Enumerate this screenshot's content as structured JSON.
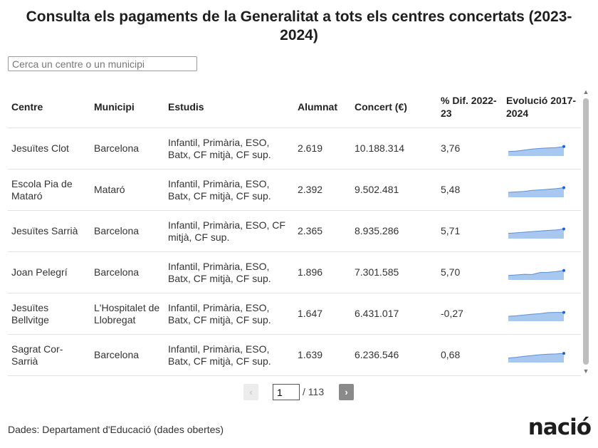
{
  "title": "Consulta els pagaments de la Generalitat a tots els centres concertats (2023-2024)",
  "search": {
    "placeholder": "Cerca un centre o un municipi"
  },
  "table": {
    "headers": {
      "centre": "Centre",
      "municipi": "Municipi",
      "estudis": "Estudis",
      "alumnat": "Alumnat",
      "concert": "Concert (€)",
      "dif": "% Dif. 2022-23",
      "evolucio": "Evolució 2017-2024"
    },
    "rows": [
      {
        "centre": "Jesuïtes Clot",
        "municipi": "Barcelona",
        "estudis": "Infantil, Primària, ESO, Batx, CF mitjà, CF sup.",
        "alumnat": "2.619",
        "concert": "10.188.314",
        "dif": "3,76",
        "trend": [
          0.3,
          0.35,
          0.45,
          0.55,
          0.62,
          0.66,
          0.7,
          0.8
        ]
      },
      {
        "centre": "Escola Pia de Mataró",
        "municipi": "Mataró",
        "estudis": "Infantil, Primària, ESO, Batx, CF mitjà, CF sup.",
        "alumnat": "2.392",
        "concert": "9.502.481",
        "dif": "5,48",
        "trend": [
          0.35,
          0.4,
          0.45,
          0.55,
          0.6,
          0.66,
          0.72,
          0.82
        ]
      },
      {
        "centre": "Jesuïtes Sarrià",
        "municipi": "Barcelona",
        "estudis": "Infantil, Primària, ESO, CF mitjà, CF sup.",
        "alumnat": "2.365",
        "concert": "8.935.286",
        "dif": "5,71",
        "trend": [
          0.38,
          0.44,
          0.5,
          0.56,
          0.62,
          0.68,
          0.72,
          0.82
        ]
      },
      {
        "centre": "Joan Pelegrí",
        "municipi": "Barcelona",
        "estudis": "Infantil, Primària, ESO, Batx, CF mitjà, CF sup.",
        "alumnat": "1.896",
        "concert": "7.301.585",
        "dif": "5,70",
        "trend": [
          0.3,
          0.36,
          0.42,
          0.4,
          0.6,
          0.62,
          0.7,
          0.8
        ]
      },
      {
        "centre": "Jesuïtes Bellvitge",
        "municipi": "L'Hospitalet de Llobregat",
        "estudis": "Infantil, Primària, ESO, Batx, CF mitjà, CF sup.",
        "alumnat": "1.647",
        "concert": "6.431.017",
        "dif": "-0,27",
        "trend": [
          0.35,
          0.4,
          0.48,
          0.56,
          0.62,
          0.72,
          0.74,
          0.74
        ]
      },
      {
        "centre": "Sagrat Cor-Sarrià",
        "municipi": "Barcelona",
        "estudis": "Infantil, Primària, ESO, Batx, CF mitjà, CF sup.",
        "alumnat": "1.639",
        "concert": "6.236.546",
        "dif": "0,68",
        "trend": [
          0.3,
          0.38,
          0.48,
          0.56,
          0.64,
          0.7,
          0.72,
          0.78
        ]
      }
    ]
  },
  "pagination": {
    "current_page": "1",
    "total_label": "/ 113",
    "prev_label": "‹",
    "next_label": "›"
  },
  "source": "Dades: Departament d'Educació (dades obertes)",
  "logo": "nació",
  "colors": {
    "spark_fill": "#a8c8f0",
    "spark_line": "#5b8fd8",
    "spark_dot": "#1f5fd6"
  }
}
